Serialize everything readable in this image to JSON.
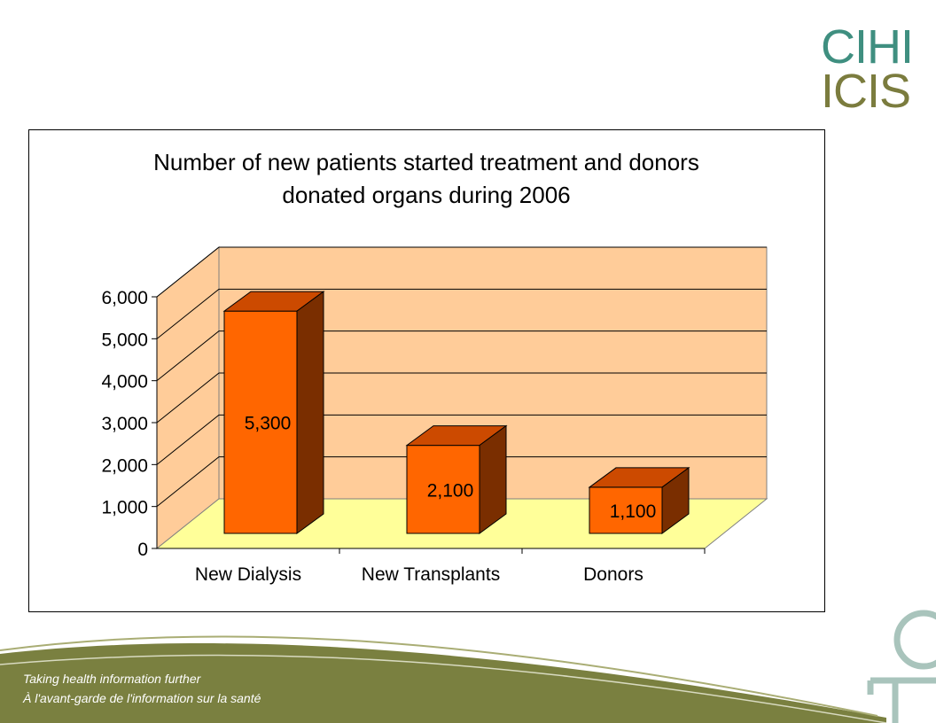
{
  "logo": {
    "line1": "CIHI",
    "line2": "ICIS"
  },
  "tagline": {
    "en": "Taking health information further",
    "fr": "À l'avant-garde de l'information sur la santé"
  },
  "colors": {
    "bar_front": "#ff6600",
    "bar_top": "#cc4a00",
    "bar_side": "#7a2e00",
    "wall": "#ffcc99",
    "floor": "#ffff99",
    "footer_green": "#7a8040",
    "logo_teal": "#3f8f80",
    "logo_olive": "#7b7c3e"
  },
  "chart_data": {
    "type": "bar",
    "title_line1": "Number of new patients started  treatment and donors",
    "title_line2": "donated organs during 2006",
    "categories": [
      "New Dialysis",
      "New Transplants",
      "Donors"
    ],
    "values": [
      5300,
      2100,
      1100
    ],
    "data_labels": [
      "5,300",
      "2,100",
      "1,100"
    ],
    "ylim": [
      0,
      6000
    ],
    "yticks": [
      0,
      1000,
      2000,
      3000,
      4000,
      5000,
      6000
    ],
    "ytick_labels": [
      "0",
      "1,000",
      "2,000",
      "3,000",
      "4,000",
      "5,000",
      "6,000"
    ],
    "grid": true,
    "legend": "none",
    "style": "3d"
  }
}
